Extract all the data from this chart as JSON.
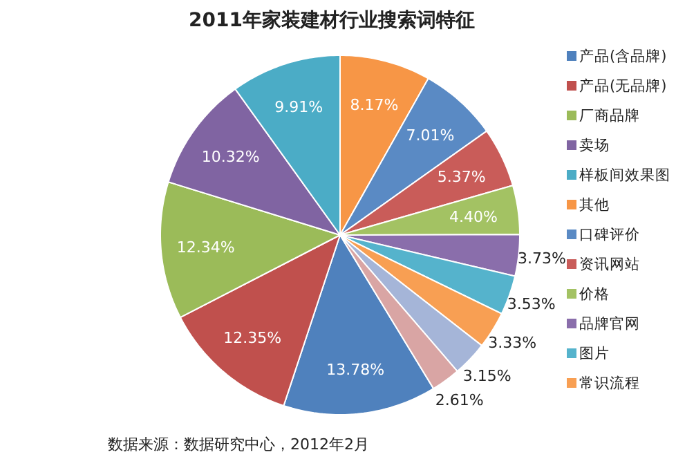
{
  "chart_data": {
    "type": "pie",
    "title": "2011年家装建材行业搜索词特征",
    "categories": [
      "产品(含品牌)",
      "产品(无品牌)",
      "厂商品牌",
      "卖场",
      "样板间效果图",
      "其他",
      "口碑评价",
      "资讯网站",
      "价格",
      "品牌官网",
      "图片",
      "常识流程",
      null,
      null
    ],
    "values": [
      13.78,
      12.35,
      12.34,
      10.32,
      9.91,
      8.17,
      7.01,
      5.37,
      4.4,
      3.73,
      3.53,
      3.33,
      3.15,
      2.61
    ],
    "colors": [
      "#4f81bd",
      "#c0504d",
      "#9bbb59",
      "#8064a2",
      "#4bacc6",
      "#f79646",
      "#5a8ac4",
      "#c95c59",
      "#a3c263",
      "#8a6eab",
      "#55b3cc",
      "#f89f53",
      "#a5b5d8",
      "#d9a5a4"
    ],
    "value_labels": [
      "13.78%",
      "12.35%",
      "12.34%",
      "10.32%",
      "9.91%",
      "8.17%",
      "7.01%",
      "5.37%",
      "4.40%",
      "3.73%",
      "3.53%",
      "3.33%",
      "3.15%",
      "2.61%"
    ],
    "legend": "right",
    "annotations": [
      "数据来源：数据研究中心，2012年2月"
    ]
  }
}
